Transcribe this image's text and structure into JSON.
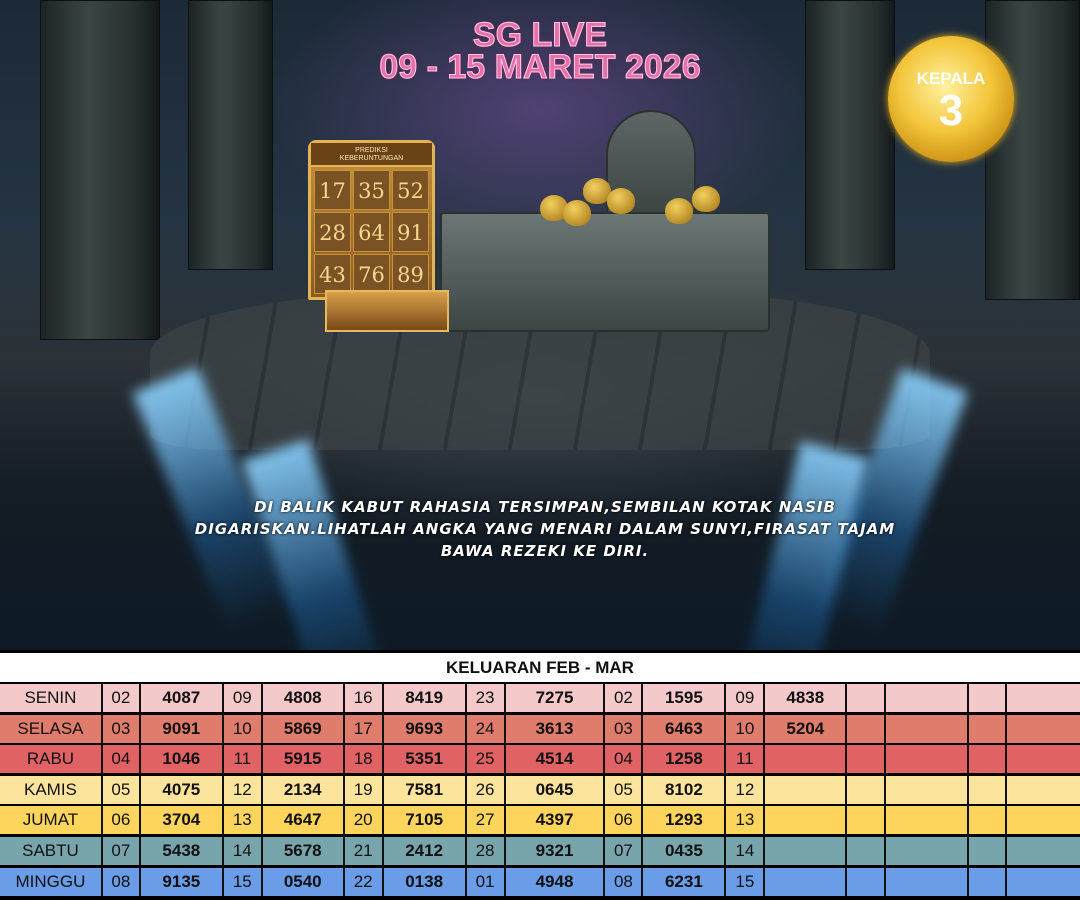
{
  "header": {
    "title": "SG LIVE",
    "period": "09 - 15 MARET 2026"
  },
  "badge": {
    "label": "KEPALA",
    "number": "3"
  },
  "prediction_board": {
    "title_line1": "PREDIKSI",
    "title_line2": "KEBERUNTUNGAN",
    "numbers": [
      "17",
      "35",
      "52",
      "28",
      "64",
      "91",
      "43",
      "76",
      "89"
    ]
  },
  "quote": "DI BALIK KABUT RAHASIA TERSIMPAN,SEMBILAN KOTAK NASIB DIGARISKAN.LIHATLAH ANGKA YANG MENARI DALAM SUNYI,FIRASAT TAJAM BAWA REZEKI KE DIRI.",
  "table": {
    "title": "KELUARAN FEB - MAR",
    "rows": [
      {
        "day": "SENIN",
        "color": "#f4c9c9",
        "cells": [
          "02",
          "4087",
          "09",
          "4808",
          "16",
          "8419",
          "23",
          "7275",
          "02",
          "1595",
          "09",
          "4838",
          "",
          "",
          "",
          ""
        ]
      },
      {
        "day": "SELASA",
        "color": "#e07c6c",
        "cells": [
          "03",
          "9091",
          "10",
          "5869",
          "17",
          "9693",
          "24",
          "3613",
          "03",
          "6463",
          "10",
          "5204",
          "",
          "",
          "",
          ""
        ]
      },
      {
        "day": "RABU",
        "color": "#e06264",
        "cells": [
          "04",
          "1046",
          "11",
          "5915",
          "18",
          "5351",
          "25",
          "4514",
          "04",
          "1258",
          "11",
          "",
          "",
          "",
          "",
          ""
        ]
      },
      {
        "day": "KAMIS",
        "color": "#fde49c",
        "cells": [
          "05",
          "4075",
          "12",
          "2134",
          "19",
          "7581",
          "26",
          "0645",
          "05",
          "8102",
          "12",
          "",
          "",
          "",
          "",
          ""
        ]
      },
      {
        "day": "JUMAT",
        "color": "#fdd45c",
        "cells": [
          "06",
          "3704",
          "13",
          "4647",
          "20",
          "7105",
          "27",
          "4397",
          "06",
          "1293",
          "13",
          "",
          "",
          "",
          "",
          ""
        ]
      },
      {
        "day": "SABTU",
        "color": "#78a5ac",
        "cells": [
          "07",
          "5438",
          "14",
          "5678",
          "21",
          "2412",
          "28",
          "9321",
          "07",
          "0435",
          "14",
          "",
          "",
          "",
          "",
          ""
        ]
      },
      {
        "day": "MINGGU",
        "color": "#6a9ce8",
        "cells": [
          "08",
          "9135",
          "15",
          "0540",
          "22",
          "0138",
          "01",
          "4948",
          "08",
          "6231",
          "15",
          "",
          "",
          "",
          "",
          ""
        ]
      }
    ]
  }
}
